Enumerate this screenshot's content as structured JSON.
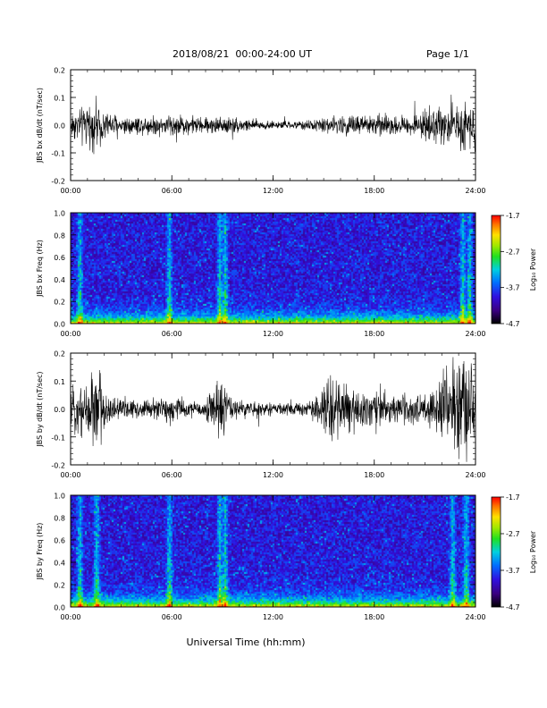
{
  "header": {
    "date_range": "2018/08/21  00:00-24:00 UT",
    "page": "Page 1/1"
  },
  "footer": {
    "xlabel": "Universal Time (hh:mm)"
  },
  "colorbar_top": {
    "ticks": [
      "-1.7",
      "-2.7",
      "-3.7",
      "-4.7"
    ],
    "label": "Log₁₀ Power"
  },
  "colorbar_bottom": {
    "ticks": [
      "-1.7",
      "-2.7",
      "-3.7",
      "-4.7"
    ],
    "label": "Log₁₀ Power"
  },
  "chart_data": [
    {
      "type": "line",
      "ylabel": "JBS bx dB/dt (nT/sec)",
      "xticks": [
        "00:00",
        "06:00",
        "12:00",
        "18:00",
        "24:00"
      ],
      "yticks": [
        "0.2",
        "0.1",
        "0.0",
        "-0.1",
        "-0.2"
      ],
      "xlim": [
        0,
        24
      ],
      "ylim": [
        -0.2,
        0.2
      ],
      "envelope": {
        "hours": [
          0,
          1,
          1.5,
          2,
          3,
          4,
          5,
          6,
          7,
          8,
          9,
          10,
          11,
          12,
          13,
          14,
          15,
          16,
          17,
          18,
          19,
          20,
          21,
          22,
          22.5,
          23,
          23.5,
          24
        ],
        "amplitude": [
          0.04,
          0.05,
          0.06,
          0.04,
          0.025,
          0.025,
          0.025,
          0.03,
          0.025,
          0.02,
          0.025,
          0.02,
          0.015,
          0.01,
          0.01,
          0.012,
          0.02,
          0.025,
          0.03,
          0.03,
          0.025,
          0.025,
          0.035,
          0.05,
          0.05,
          0.06,
          0.07,
          0.05
        ]
      }
    },
    {
      "type": "heatmap",
      "ylabel": "JBS bx Freq (Hz)",
      "xticks": [
        "00:00",
        "06:00",
        "12:00",
        "18:00",
        "24:00"
      ],
      "yticks": [
        "1.0",
        "0.8",
        "0.6",
        "0.4",
        "0.2",
        "0.0"
      ],
      "xlim": [
        0,
        24
      ],
      "ylim": [
        0,
        1
      ],
      "zlim": [
        -4.7,
        -1.7
      ],
      "bursts_hours": [
        0.5,
        5.8,
        8.8,
        9.1,
        23.2,
        23.6
      ]
    },
    {
      "type": "line",
      "ylabel": "JBS by dB/dt (nT/sec)",
      "xticks": [
        "00:00",
        "06:00",
        "12:00",
        "18:00",
        "24:00"
      ],
      "yticks": [
        "0.2",
        "0.1",
        "0.0",
        "-0.1",
        "-0.2"
      ],
      "xlim": [
        0,
        24
      ],
      "ylim": [
        -0.2,
        0.2
      ],
      "envelope": {
        "hours": [
          0,
          1,
          1.5,
          2,
          3,
          4,
          5,
          5.8,
          6.5,
          7,
          8,
          8.8,
          9.5,
          10,
          11,
          12,
          13,
          14,
          15,
          15.5,
          16,
          17,
          18,
          19,
          20,
          21,
          22,
          22.5,
          23,
          23.3,
          23.6,
          24
        ],
        "amplitude": [
          0.05,
          0.08,
          0.13,
          0.05,
          0.03,
          0.025,
          0.025,
          0.04,
          0.025,
          0.02,
          0.025,
          0.08,
          0.03,
          0.025,
          0.02,
          0.015,
          0.015,
          0.02,
          0.06,
          0.09,
          0.07,
          0.05,
          0.06,
          0.04,
          0.035,
          0.04,
          0.08,
          0.1,
          0.15,
          0.16,
          0.12,
          0.06
        ]
      }
    },
    {
      "type": "heatmap",
      "ylabel": "JBS by Freq (Hz)",
      "xticks": [
        "00:00",
        "06:00",
        "12:00",
        "18:00",
        "24:00"
      ],
      "yticks": [
        "1.0",
        "0.8",
        "0.6",
        "0.4",
        "0.2",
        "0.0"
      ],
      "xlim": [
        0,
        24
      ],
      "ylim": [
        0,
        1
      ],
      "zlim": [
        -4.7,
        -1.7
      ],
      "bursts_hours": [
        0.5,
        1.5,
        5.8,
        8.8,
        9.1,
        22.6,
        23.4
      ]
    }
  ]
}
